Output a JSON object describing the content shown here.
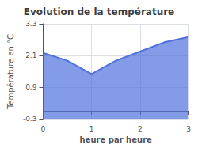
{
  "chart_data": {
    "type": "area",
    "title": "Evolution de la température",
    "xlabel": "heure par heure",
    "ylabel": "Température en °C",
    "x": [
      0,
      0.5,
      1.0,
      1.5,
      2.0,
      2.5,
      3.0
    ],
    "values": [
      2.2,
      1.9,
      1.4,
      1.9,
      2.25,
      2.6,
      2.8
    ],
    "xlim": [
      0,
      3
    ],
    "xticks": [
      0,
      1,
      2,
      3
    ],
    "ylim": [
      -0.3,
      3.3
    ],
    "yticks": [
      -0.3,
      0.9,
      2.1,
      3.3
    ],
    "grid": true
  }
}
